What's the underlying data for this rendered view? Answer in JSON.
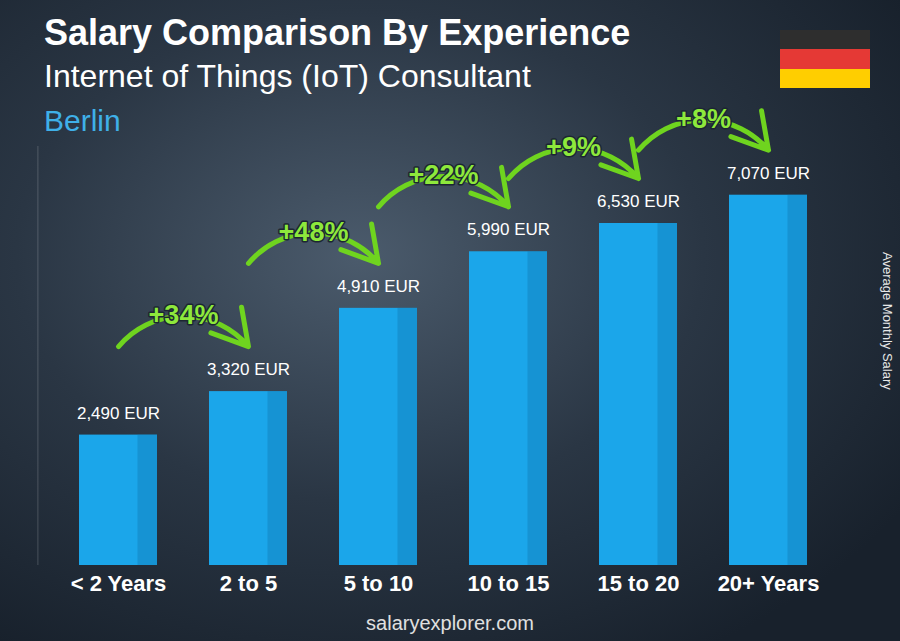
{
  "chart_data": {
    "type": "bar",
    "title": "Salary Comparison By Experience",
    "subtitle": "Internet of Things (IoT) Consultant",
    "location": "Berlin",
    "y_label": "Average Monthly Salary",
    "source": "salaryexplorer.com",
    "categories": [
      "< 2 Years",
      "2 to 5",
      "5 to 10",
      "10 to 15",
      "15 to 20",
      "20+ Years"
    ],
    "values": [
      2490,
      3320,
      4910,
      5990,
      6530,
      7070
    ],
    "value_labels": [
      "2,490 EUR",
      "3,320 EUR",
      "4,910 EUR",
      "5,990 EUR",
      "6,530 EUR",
      "7,070 EUR"
    ],
    "annotations": [
      "+34%",
      "+48%",
      "+22%",
      "+9%",
      "+8%"
    ],
    "color": "#1ba6ea",
    "ylim": [
      0,
      8000
    ],
    "grid": false,
    "data_labels": true,
    "tick_labels": "x"
  }
}
